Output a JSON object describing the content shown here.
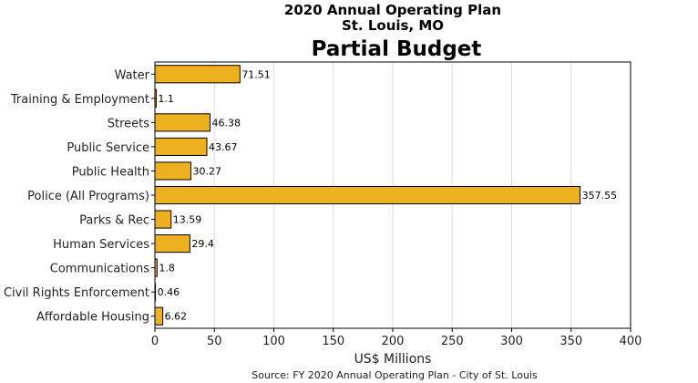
{
  "header": {
    "line1": "2020 Annual Operating Plan",
    "line2": "St. Louis, MO",
    "title": "Partial Budget"
  },
  "source": "Source: FY 2020 Annual Operating Plan - City of St. Louis",
  "colors": {
    "bar_fill": "#EDB120",
    "bar_stroke": "#000000",
    "grid": "#DDDDDD",
    "frame": "#000000"
  },
  "chart_data": {
    "type": "bar",
    "orientation": "horizontal",
    "categories": [
      "Water",
      "Training & Employment",
      "Streets",
      "Public Service",
      "Public Health",
      "Police (All Programs)",
      "Parks & Rec",
      "Human Services",
      "Communications",
      "Civil Rights Enforcement",
      "Affordable Housing"
    ],
    "values": [
      71.51,
      1.1,
      46.38,
      43.67,
      30.27,
      357.55,
      13.59,
      29.4,
      1.8,
      0.46,
      6.62
    ],
    "value_labels": [
      "71.51",
      "1.1",
      "46.38",
      "43.67",
      "30.27",
      "357.55",
      "13.59",
      "29.4",
      "1.8",
      "0.46",
      "6.62"
    ],
    "xlabel": "US$ Millions",
    "ylabel": "",
    "xlim": [
      0,
      400
    ],
    "xticks": [
      0,
      50,
      100,
      150,
      200,
      250,
      300,
      350,
      400
    ],
    "xtick_labels": [
      "0",
      "50",
      "100",
      "150",
      "200",
      "250",
      "300",
      "350",
      "400"
    ],
    "grid": "vertical"
  }
}
